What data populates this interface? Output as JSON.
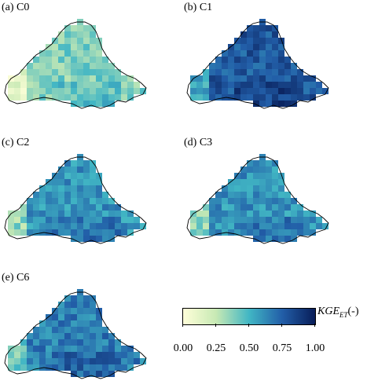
{
  "panels": [
    {
      "id": "C0",
      "title": "(a) C0",
      "kge_level": "low"
    },
    {
      "id": "C1",
      "title": "(b) C1",
      "kge_level": "high"
    },
    {
      "id": "C2",
      "title": "(c) C2",
      "kge_level": "medium"
    },
    {
      "id": "C3",
      "title": "(d) C3",
      "kge_level": "medium"
    },
    {
      "id": "C6",
      "title": "(e) C6",
      "kge_level": "medium-high"
    }
  ],
  "colorbar": {
    "label_main": "KGE",
    "label_sub": "ET",
    "label_suffix": "(-)",
    "ticks": [
      "0.00",
      "0.25",
      "0.50",
      "0.75",
      "1.00"
    ],
    "colormap": [
      "#ffffd9",
      "#c7e9b4",
      "#41b6c4",
      "#225ea8",
      "#081d58"
    ]
  },
  "colors": {
    "outline": "#000000",
    "background": "#ffffff"
  }
}
